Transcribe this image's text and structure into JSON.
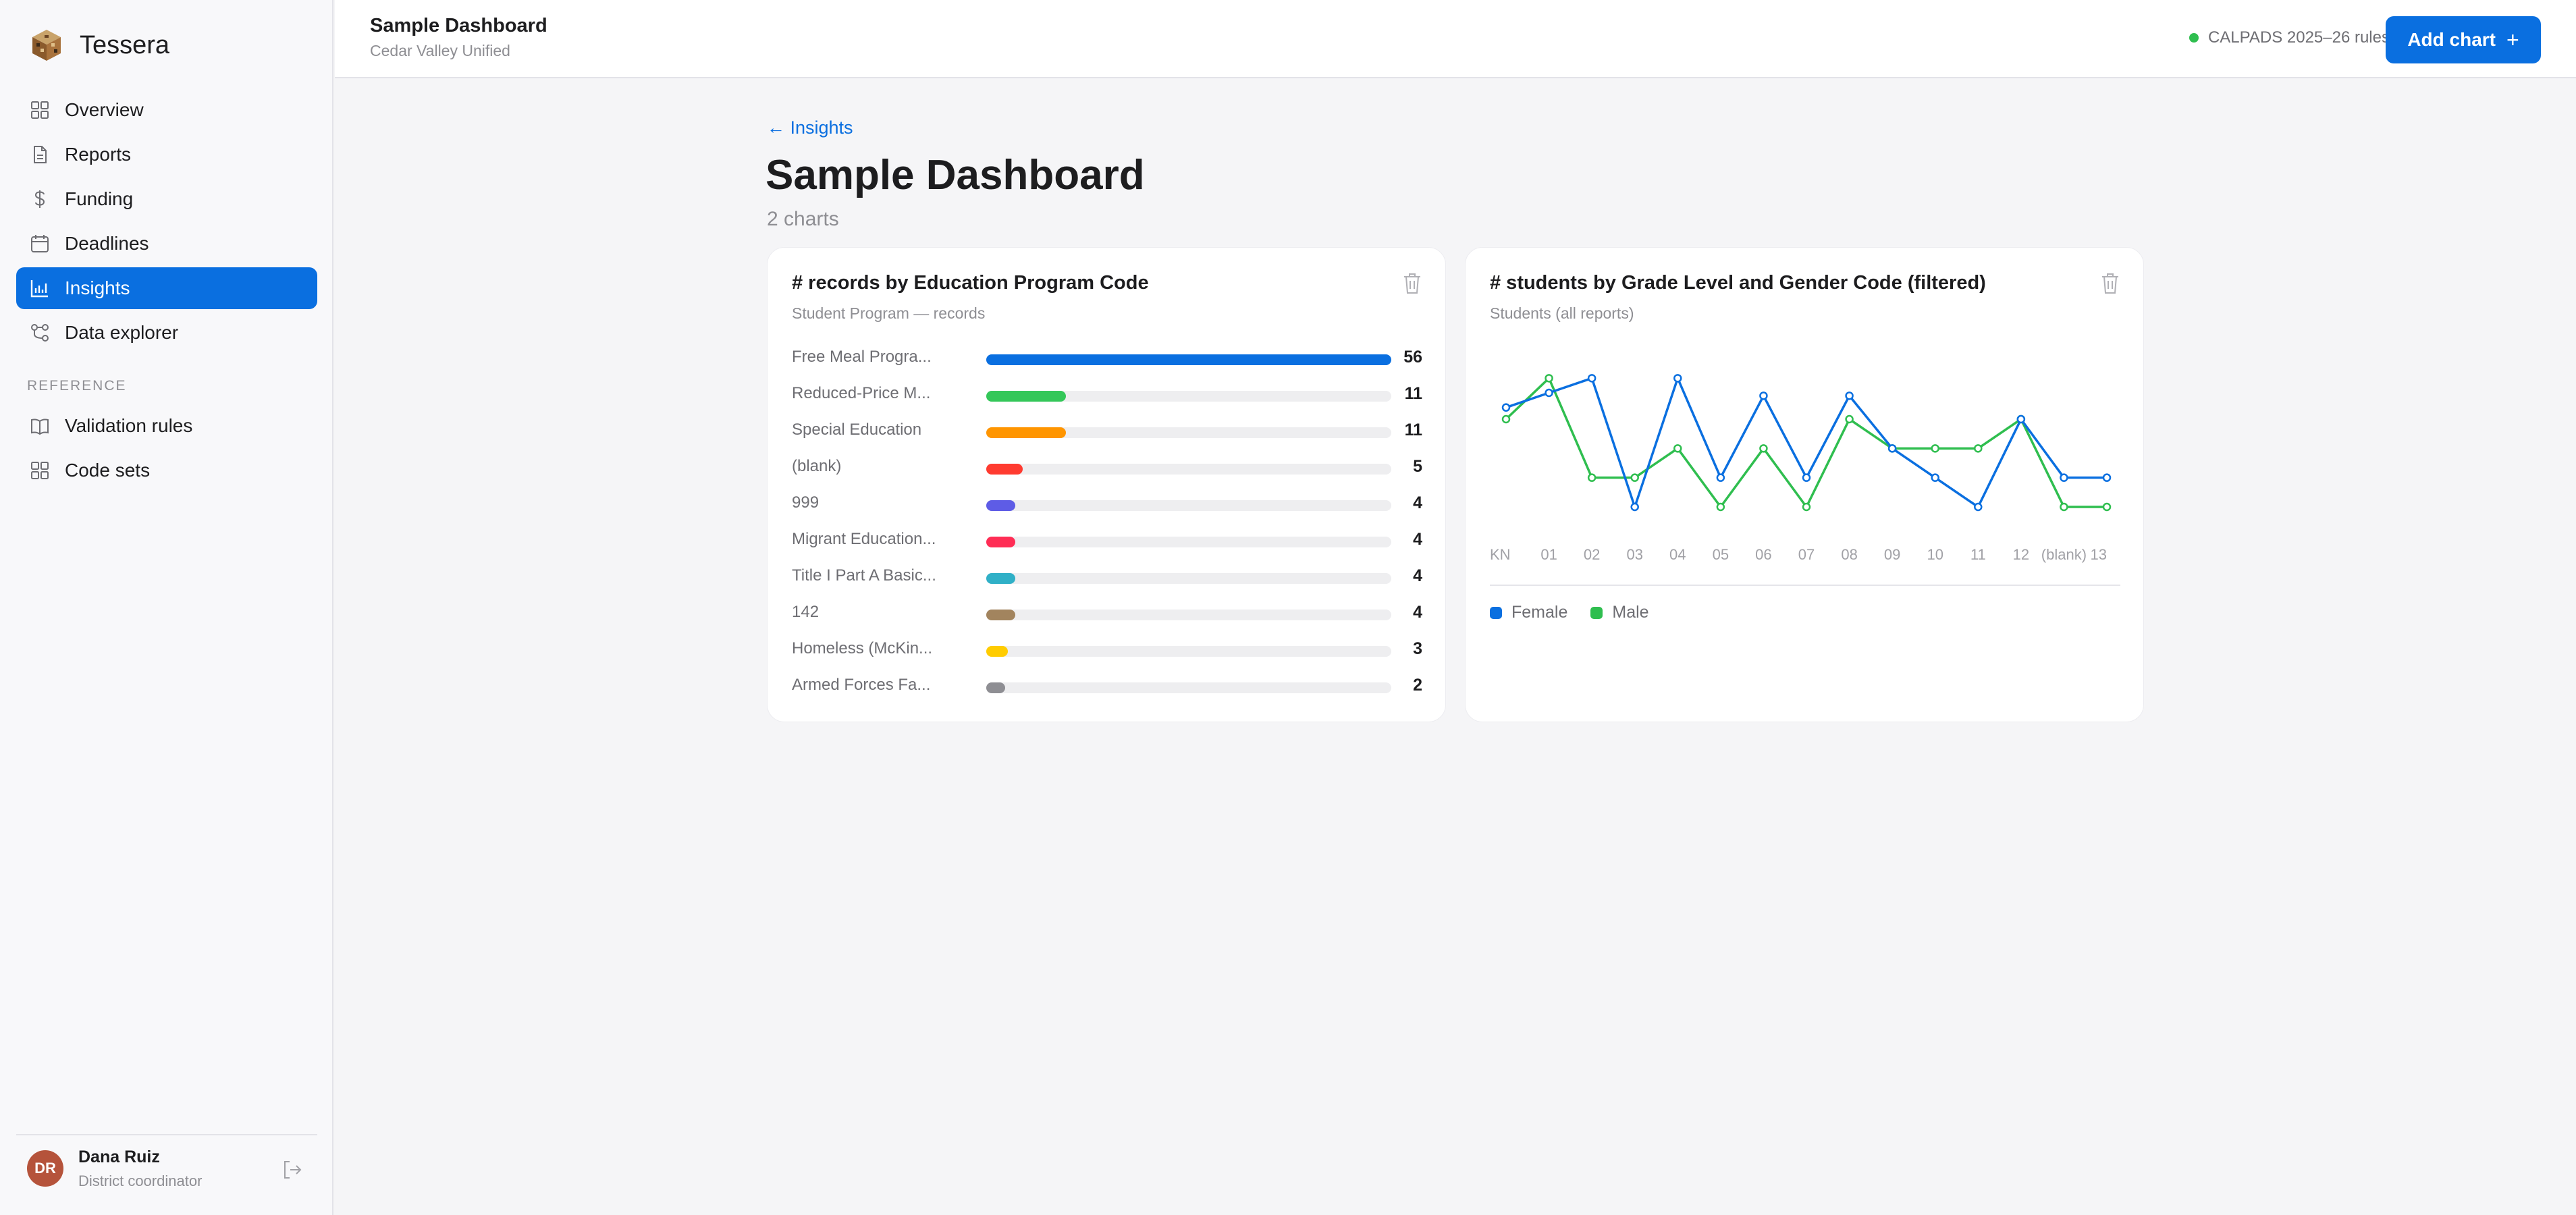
{
  "brand": {
    "name": "Tessera",
    "logo_icon": "cube-logo-icon"
  },
  "sidebar": {
    "items": [
      {
        "label": "Overview",
        "icon": "grid-icon",
        "active": false
      },
      {
        "label": "Reports",
        "icon": "document-icon",
        "active": false
      },
      {
        "label": "Funding",
        "icon": "dollar-icon",
        "active": false
      },
      {
        "label": "Deadlines",
        "icon": "calendar-icon",
        "active": false
      },
      {
        "label": "Insights",
        "icon": "bar-chart-icon",
        "active": true
      },
      {
        "label": "Data explorer",
        "icon": "nodes-icon",
        "active": false
      }
    ],
    "section_label": "REFERENCE",
    "reference_items": [
      {
        "label": "Validation rules",
        "icon": "book-icon"
      },
      {
        "label": "Code sets",
        "icon": "grid-icon"
      }
    ]
  },
  "user": {
    "initials": "DR",
    "name": "Dana Ruiz",
    "role": "District coordinator"
  },
  "header": {
    "title": "Sample Dashboard",
    "subtitle": "Cedar Valley Unified",
    "rules_label": "CALPADS 2025–26 rules",
    "add_button": "Add chart",
    "add_icon": "+"
  },
  "main": {
    "back_link": "← Insights",
    "title": "Sample Dashboard",
    "subtitle": "2 charts"
  },
  "colors": {
    "accent": "#0a6fe0",
    "status_ok": "#2fbe4f",
    "female": "#0a6fe0",
    "male": "#2fbe4f"
  },
  "chart_data": [
    {
      "type": "bar",
      "title": "# records by Education Program Code",
      "subtitle": "Student Program — records",
      "categories": [
        "Free Meal Progra...",
        "Reduced-Price M...",
        "Special Education",
        "(blank)",
        "999",
        "Migrant Education...",
        "Title I Part A Basic...",
        "142",
        "Homeless (McKin...",
        "Armed Forces Fa..."
      ],
      "values": [
        56,
        11,
        11,
        5,
        4,
        4,
        4,
        4,
        3,
        2
      ],
      "colors": [
        "#0a6fe0",
        "#34c759",
        "#ff9500",
        "#ff3b30",
        "#5e5ce6",
        "#ff2d55",
        "#30b0c7",
        "#a2845e",
        "#ffcc00",
        "#8e8e93"
      ]
    },
    {
      "type": "line",
      "title": "# students by Grade Level and Gender Code (filtered)",
      "subtitle": "Students (all reports)",
      "categories": [
        "KN",
        "01",
        "02",
        "03",
        "04",
        "05",
        "06",
        "07",
        "08",
        "09",
        "10",
        "11",
        "12",
        "(blank)",
        "13"
      ],
      "ylim": [
        0,
        6
      ],
      "series": [
        {
          "name": "Female",
          "values": [
            4,
            4.5,
            5,
            0.6,
            5,
            1.6,
            4.4,
            1.6,
            4.4,
            2.6,
            1.6,
            0.6,
            3.6,
            1.6,
            1.6
          ]
        },
        {
          "name": "Male",
          "values": [
            3.6,
            5,
            1.6,
            1.6,
            2.6,
            0.6,
            2.6,
            0.6,
            3.6,
            2.6,
            2.6,
            2.6,
            3.6,
            0.6,
            0.6
          ]
        }
      ]
    }
  ]
}
